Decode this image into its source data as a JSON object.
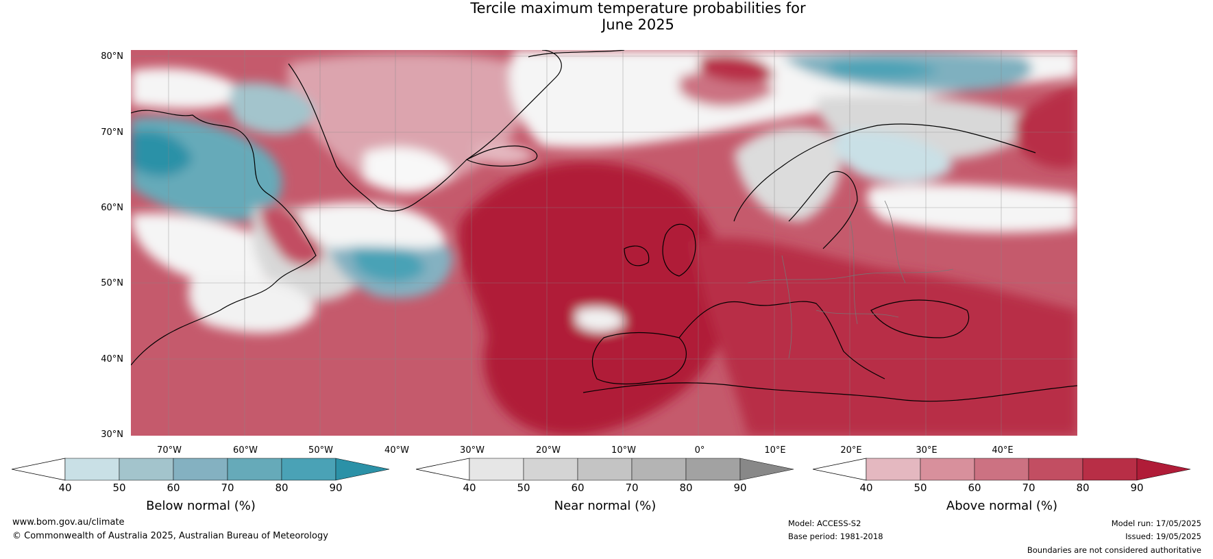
{
  "title": {
    "line1": "Tercile maximum temperature probabilities for",
    "line2": "June 2025"
  },
  "latitudes": [
    "80°N",
    "70°N",
    "60°N",
    "50°N",
    "40°N",
    "30°N"
  ],
  "longitudes": [
    "70°W",
    "60°W",
    "50°W",
    "40°W",
    "30°W",
    "20°W",
    "10°W",
    "0°",
    "10°E",
    "20°E",
    "30°E",
    "40°E"
  ],
  "colorbars": [
    {
      "label": "Below normal (%)",
      "ticks": [
        "40",
        "50",
        "60",
        "70",
        "80",
        "90"
      ],
      "colors": [
        "#c9e0e6",
        "#a3c4cc",
        "#84b1c1",
        "#66aab9",
        "#4aa2b6",
        "#2b91a7"
      ]
    },
    {
      "label": "Near normal (%)",
      "ticks": [
        "40",
        "50",
        "60",
        "70",
        "80",
        "90"
      ],
      "colors": [
        "#e6e6e6",
        "#d4d4d4",
        "#c4c4c4",
        "#b4b4b4",
        "#a2a2a2",
        "#888888"
      ]
    },
    {
      "label": "Above normal (%)",
      "ticks": [
        "40",
        "50",
        "60",
        "70",
        "80",
        "90"
      ],
      "colors": [
        "#e4b8c0",
        "#d8909c",
        "#cc7282",
        "#c24e62",
        "#b82e46",
        "#b01c38"
      ]
    }
  ],
  "footer": {
    "website": "www.bom.gov.au/climate",
    "copyright": "© Commonwealth of Australia 2025, Australian Bureau of Meteorology",
    "model": "Model: ACCESS-S2",
    "base_period": "Base period: 1981-2018",
    "model_run": "Model run: 17/05/2025",
    "issued": "Issued: 19/05/2025",
    "disclaimer": "Boundaries are not considered authoritative"
  }
}
